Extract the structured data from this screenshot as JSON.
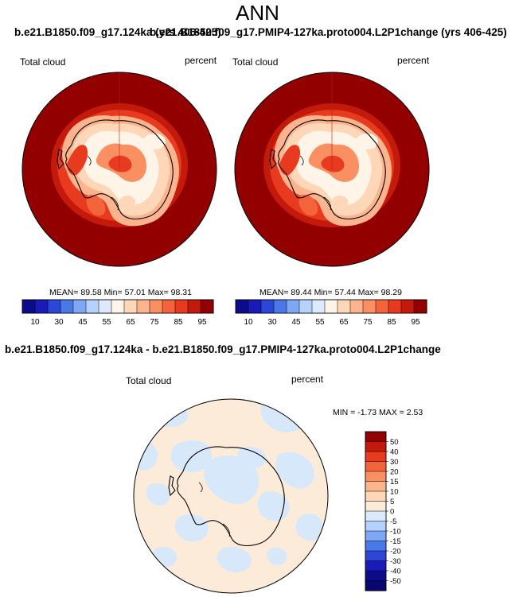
{
  "title": "ANN",
  "panel_a_header": "b.e21.B1850.f09_g17.124ka (yrs 406-425)",
  "panel_b_header": "b.e21.B1850.f09_g17.PMIP4-127ka.proto004.L2P1change (yrs 406-425)",
  "diff_header": "b.e21.B1850.f09_g17.124ka - b.e21.B1850.f09_g17.PMIP4-127ka.proto004.L2P1change",
  "maps": [
    {
      "variable": "Total cloud",
      "units": "percent",
      "mean_label": "MEAN=",
      "mean": "89.58",
      "min_label": "Min=",
      "min": "57.01",
      "max_label": "Max=",
      "max": "98.31"
    },
    {
      "variable": "Total cloud",
      "units": "percent",
      "mean_label": "MEAN=",
      "mean": "89.44",
      "min_label": "Min=",
      "min": "57.44",
      "max_label": "Max=",
      "max": "98.29"
    },
    {
      "variable": "Total cloud",
      "units": "percent",
      "stats_text": "MIN = -1.73 MAX =  2.53"
    }
  ],
  "colorbar_abs": {
    "labels": [
      "10",
      "30",
      "45",
      "55",
      "65",
      "75",
      "85",
      "95"
    ],
    "colors": [
      "#0c0c8a",
      "#1a1ab8",
      "#2c46d8",
      "#4a78e8",
      "#7ea8f4",
      "#b4d2fb",
      "#dde9fd",
      "#fef4e8",
      "#fdd7b8",
      "#fcb48e",
      "#fa8f62",
      "#f4643a",
      "#e83a1e",
      "#c41a0c",
      "#930000"
    ]
  },
  "colorbar_diff": {
    "labels": [
      "50",
      "40",
      "30",
      "20",
      "15",
      "10",
      "5",
      "0",
      "-5",
      "-10",
      "-15",
      "-20",
      "-30",
      "-40",
      "-50"
    ],
    "colors": [
      "#930000",
      "#c41a0c",
      "#e83a1e",
      "#f4643a",
      "#fa8f62",
      "#fcb48e",
      "#fdd7b8",
      "#fdebd9",
      "#dbe9fc",
      "#b4d2fb",
      "#7ea8f4",
      "#4a78e8",
      "#2c46d8",
      "#1a1ab8",
      "#0c0c8a",
      "#08086c"
    ]
  },
  "colors": {
    "high_cloud": "#930000",
    "ice_sheet_low": "#fbe4d2",
    "diff_background": "#fdebd9",
    "diff_negative": "#d8e8fb"
  }
}
